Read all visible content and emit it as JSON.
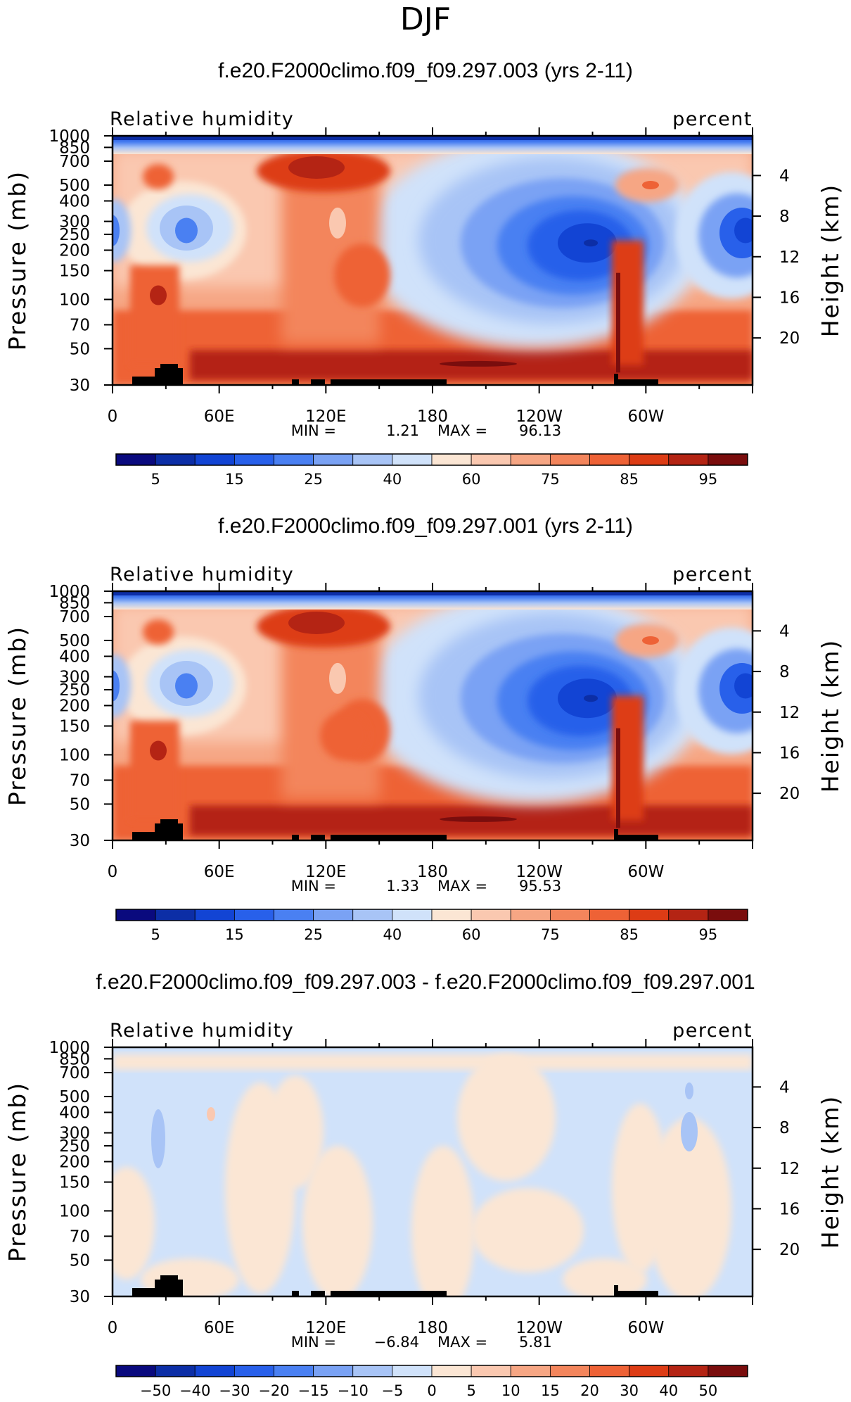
{
  "figure_title": "DJF",
  "chart_data": [
    {
      "type": "heatmap",
      "title": "f.e20.F2000climo.f09_f09.297.003 (yrs 2-11)",
      "variable": "Relative humidity",
      "units": "percent",
      "ylabel": "Pressure (mb)",
      "ylabel_right": "Height (km)",
      "x_ticks": [
        "0",
        "60E",
        "120E",
        "180",
        "120W",
        "60W"
      ],
      "x_tick_lon": [
        0,
        60,
        120,
        180,
        240,
        300
      ],
      "xlim": [
        0,
        360
      ],
      "y_ticks": [
        "30",
        "50",
        "70",
        "100",
        "150",
        "200",
        "250",
        "300",
        "400",
        "500",
        "700",
        "850",
        "1000"
      ],
      "ylim": [
        1000,
        30
      ],
      "height_ticks": [
        "20",
        "16",
        "12",
        "8",
        "4"
      ],
      "height_values_km": [
        20,
        16,
        12,
        8,
        4
      ],
      "stats_min_label": "MIN =",
      "min": "1.21",
      "stats_max_label": "MAX =",
      "max": "96.13",
      "colorbar_labels": [
        "5",
        "15",
        "25",
        "40",
        "60",
        "75",
        "85",
        "95"
      ],
      "colorbar_levels": 16
    },
    {
      "type": "heatmap",
      "title": "f.e20.F2000climo.f09_f09.297.001 (yrs 2-11)",
      "variable": "Relative humidity",
      "units": "percent",
      "ylabel": "Pressure (mb)",
      "ylabel_right": "Height (km)",
      "x_ticks": [
        "0",
        "60E",
        "120E",
        "180",
        "120W",
        "60W"
      ],
      "x_tick_lon": [
        0,
        60,
        120,
        180,
        240,
        300
      ],
      "xlim": [
        0,
        360
      ],
      "y_ticks": [
        "30",
        "50",
        "70",
        "100",
        "150",
        "200",
        "250",
        "300",
        "400",
        "500",
        "700",
        "850",
        "1000"
      ],
      "ylim": [
        1000,
        30
      ],
      "height_ticks": [
        "20",
        "16",
        "12",
        "8",
        "4"
      ],
      "height_values_km": [
        20,
        16,
        12,
        8,
        4
      ],
      "stats_min_label": "MIN =",
      "min": "1.33",
      "stats_max_label": "MAX =",
      "max": "95.53",
      "colorbar_labels": [
        "5",
        "15",
        "25",
        "40",
        "60",
        "75",
        "85",
        "95"
      ],
      "colorbar_levels": 16
    },
    {
      "type": "heatmap",
      "title": "f.e20.F2000climo.f09_f09.297.003 - f.e20.F2000climo.f09_f09.297.001",
      "variable": "Relative humidity",
      "units": "percent",
      "ylabel": "Pressure (mb)",
      "ylabel_right": "Height (km)",
      "x_ticks": [
        "0",
        "60E",
        "120E",
        "180",
        "120W",
        "60W"
      ],
      "x_tick_lon": [
        0,
        60,
        120,
        180,
        240,
        300
      ],
      "xlim": [
        0,
        360
      ],
      "y_ticks": [
        "30",
        "50",
        "70",
        "100",
        "150",
        "200",
        "250",
        "300",
        "400",
        "500",
        "700",
        "850",
        "1000"
      ],
      "ylim": [
        1000,
        30
      ],
      "height_ticks": [
        "20",
        "16",
        "12",
        "8",
        "4"
      ],
      "height_values_km": [
        20,
        16,
        12,
        8,
        4
      ],
      "stats_min_label": "MIN =",
      "min": "−6.84",
      "stats_max_label": "MAX =",
      "max": "5.81",
      "colorbar_labels": [
        "−50",
        "−40",
        "−30",
        "−20",
        "−15",
        "−10",
        "−5",
        "0",
        "5",
        "10",
        "15",
        "20",
        "30",
        "40",
        "50"
      ],
      "colorbar_levels": 16
    }
  ],
  "colors": {
    "colorbar": [
      "#0a0a7e",
      "#0c2ea6",
      "#1244d4",
      "#2860ea",
      "#4a80f2",
      "#7aa2f4",
      "#a8c4f6",
      "#d0e2fa",
      "#fbe6d4",
      "#fac8b0",
      "#f6a684",
      "#f3855c",
      "#ee6236",
      "#dd3c15",
      "#b42414",
      "#7a0d0d"
    ],
    "diff_positive": "#fbe6d4",
    "diff_negative": "#d0e2fa",
    "diff_strong_negative": "#a8c4f6",
    "diff_strong_positive": "#fac8b0",
    "topography": "#000000"
  }
}
